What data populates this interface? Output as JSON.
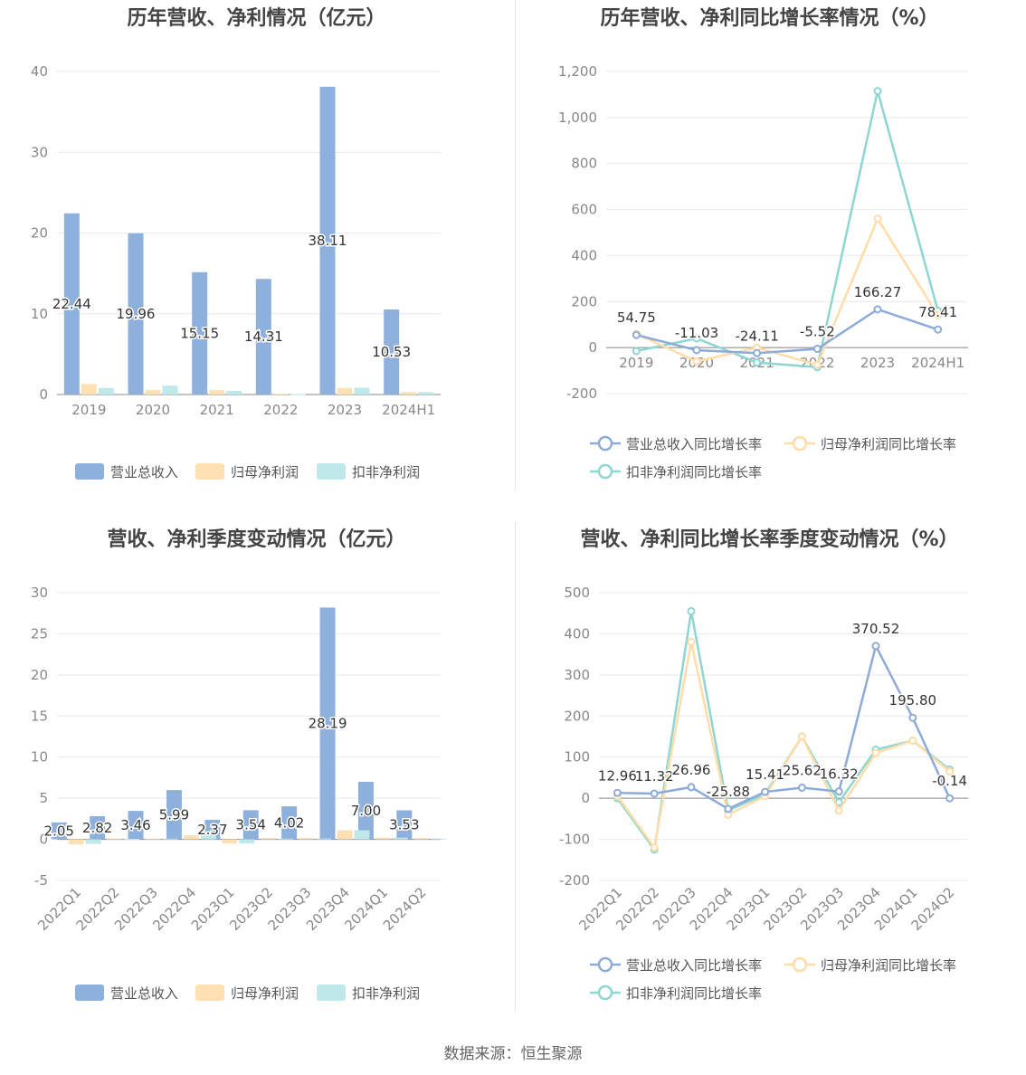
{
  "source": "数据来源：恒生聚源",
  "colors": {
    "revenue": "#8eb0dc",
    "netprofit": "#ffe0b2",
    "deducted": "#bfe8ea",
    "line_revenue": "#8eabd8",
    "line_net": "#ffdca8",
    "line_ded": "#8ed6d2",
    "grid": "#e6e9f0",
    "axis": "#888888"
  },
  "chart_data": [
    {
      "type": "bar",
      "title": "历年营收、净利情况（亿元）",
      "categories": [
        "2019",
        "2020",
        "2021",
        "2022",
        "2023",
        "2024H1"
      ],
      "ylim": [
        0,
        40
      ],
      "yticks": [
        "0",
        "10",
        "20",
        "30",
        "40"
      ],
      "series": [
        {
          "name": "营业总收入",
          "values": [
            22.44,
            19.96,
            15.15,
            14.31,
            38.11,
            10.53
          ],
          "labels": [
            "22.44",
            "19.96",
            "15.15",
            "14.31",
            "38.11",
            "10.53"
          ]
        },
        {
          "name": "归母净利润",
          "values": [
            1.3,
            0.55,
            0.55,
            0.1,
            0.8,
            0.3
          ]
        },
        {
          "name": "扣非净利润",
          "values": [
            0.8,
            1.1,
            0.45,
            0.05,
            0.85,
            0.3
          ]
        }
      ]
    },
    {
      "type": "line",
      "title": "历年营收、净利同比增长率情况（%）",
      "categories": [
        "2019",
        "2020",
        "2021",
        "2022",
        "2023",
        "2024H1"
      ],
      "ylim": [
        -200,
        1200
      ],
      "yticks": [
        "-200",
        "0",
        "200",
        "400",
        "600",
        "800",
        "1,000",
        "1,200"
      ],
      "series": [
        {
          "name": "营业总收入同比增长率",
          "values": [
            54.75,
            -11.03,
            -24.11,
            -5.52,
            166.27,
            78.41
          ],
          "labels": [
            "54.75",
            "-11.03",
            "-24.11",
            "-5.52",
            "166.27",
            "78.41"
          ]
        },
        {
          "name": "归母净利润同比增长率",
          "values": [
            60,
            -60,
            0,
            -75,
            560,
            140
          ]
        },
        {
          "name": "扣非净利润同比增长率",
          "values": [
            -15,
            40,
            -65,
            -85,
            1115,
            160
          ]
        }
      ]
    },
    {
      "type": "bar",
      "title": "营收、净利季度变动情况（亿元）",
      "categories": [
        "2022Q1",
        "2022Q2",
        "2022Q3",
        "2022Q4",
        "2023Q1",
        "2023Q2",
        "2023Q3",
        "2023Q4",
        "2024Q1",
        "2024Q2"
      ],
      "ylim": [
        -5,
        30
      ],
      "yticks": [
        "-5",
        "0",
        "5",
        "10",
        "15",
        "20",
        "25",
        "30"
      ],
      "series": [
        {
          "name": "营业总收入",
          "values": [
            2.05,
            2.82,
            3.46,
            5.99,
            2.37,
            3.54,
            4.02,
            28.19,
            7.0,
            3.53
          ],
          "labels": [
            "2.05",
            "2.82",
            "3.46",
            "5.99",
            "2.37",
            "3.54",
            "4.02",
            "28.19",
            "7.00",
            "3.53"
          ]
        },
        {
          "name": "归母净利润",
          "values": [
            -0.6,
            0.1,
            0.1,
            0.5,
            -0.5,
            0.15,
            0.15,
            1.1,
            0.2,
            0.15
          ]
        },
        {
          "name": "扣非净利润",
          "values": [
            -0.55,
            0.05,
            0.1,
            0.45,
            -0.5,
            0.1,
            0.1,
            1.1,
            0.2,
            0.1
          ]
        }
      ]
    },
    {
      "type": "line",
      "title": "营收、净利同比增长率季度变动情况（%）",
      "categories": [
        "2022Q1",
        "2022Q2",
        "2022Q3",
        "2022Q4",
        "2023Q1",
        "2023Q2",
        "2023Q3",
        "2023Q4",
        "2024Q1",
        "2024Q2"
      ],
      "ylim": [
        -200,
        500
      ],
      "yticks": [
        "-200",
        "-100",
        "0",
        "100",
        "200",
        "300",
        "400",
        "500"
      ],
      "series": [
        {
          "name": "营业总收入同比增长率",
          "values": [
            12.96,
            11.32,
            26.96,
            -25.88,
            15.41,
            25.62,
            16.32,
            370.52,
            195.8,
            -0.14
          ],
          "labels": [
            "12.96",
            "11.32",
            "26.96",
            "-25.88",
            "15.41",
            "25.62",
            "16.32",
            "370.52",
            "195.80",
            "-0.14"
          ]
        },
        {
          "name": "归母净利润同比增长率",
          "values": [
            5,
            -120,
            380,
            -40,
            5,
            150,
            -30,
            110,
            140,
            65
          ]
        },
        {
          "name": "扣非净利润同比增长率",
          "values": [
            0,
            -125,
            455,
            -30,
            10,
            150,
            -10,
            118,
            140,
            70
          ]
        }
      ]
    }
  ]
}
